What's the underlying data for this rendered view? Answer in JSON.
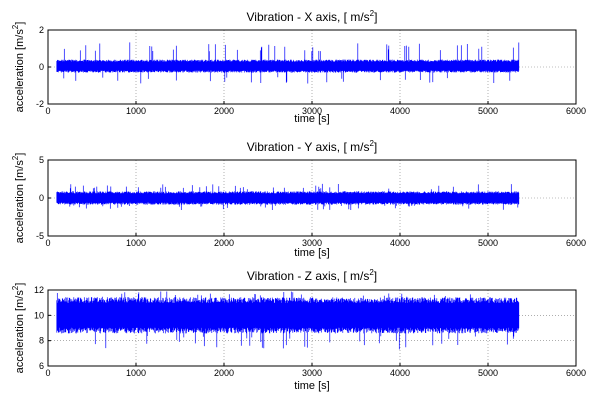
{
  "chart_data": [
    {
      "type": "area",
      "title": "Vibration  - X axis, [ m/s^2]",
      "title_main": "Vibration  - X axis, [ m/s",
      "title_sup": "2",
      "title_end": "]",
      "xlabel": "time [s]",
      "ylabel_main": "acceleration [m/s",
      "ylabel_sup": "2",
      "ylabel_end": "]",
      "xlim": [
        0,
        6000
      ],
      "ylim": [
        -2,
        2
      ],
      "xticks": [
        "0",
        "1000",
        "2000",
        "3000",
        "4000",
        "5000",
        "6000"
      ],
      "yticks": [
        "-2",
        "0",
        "2"
      ],
      "grid": true,
      "series_color": "#0000ff",
      "x_range": [
        100,
        5350
      ],
      "band": {
        "center": 0.05,
        "half_width": 0.32,
        "spike_min": -0.9,
        "spike_max": 1.35
      }
    },
    {
      "type": "area",
      "title": "Vibration  - Y axis, [ m/s^2]",
      "title_main": "Vibration  - Y axis, [ m/s",
      "title_sup": "2",
      "title_end": "]",
      "xlabel": "time [s]",
      "ylabel_main": "acceleration [m/s",
      "ylabel_sup": "2",
      "ylabel_end": "]",
      "xlim": [
        0,
        6000
      ],
      "ylim": [
        -5,
        5
      ],
      "xticks": [
        "0",
        "1000",
        "2000",
        "3000",
        "4000",
        "5000",
        "6000"
      ],
      "yticks": [
        "-5",
        "0",
        "5"
      ],
      "grid": true,
      "series_color": "#0000ff",
      "x_range": [
        100,
        5350
      ],
      "band": {
        "center": 0.0,
        "half_width": 0.8,
        "spike_min": -1.6,
        "spike_max": 1.9
      }
    },
    {
      "type": "area",
      "title": "Vibration  - Z axis, [ m/s^2]",
      "title_main": "Vibration  - Z axis, [ m/s",
      "title_sup": "2",
      "title_end": "]",
      "xlabel": "time [s]",
      "ylabel_main": "acceleration [m/s",
      "ylabel_sup": "2",
      "ylabel_end": "]",
      "xlim": [
        0,
        6000
      ],
      "ylim": [
        6,
        12
      ],
      "xticks": [
        "0",
        "1000",
        "2000",
        "3000",
        "4000",
        "5000",
        "6000"
      ],
      "yticks": [
        "6",
        "8",
        "10",
        "12"
      ],
      "grid": true,
      "series_color": "#0000ff",
      "x_range": [
        100,
        5350
      ],
      "band": {
        "center": 10.0,
        "half_width": 1.3,
        "spike_min": 7.3,
        "spike_max": 11.9
      }
    }
  ]
}
